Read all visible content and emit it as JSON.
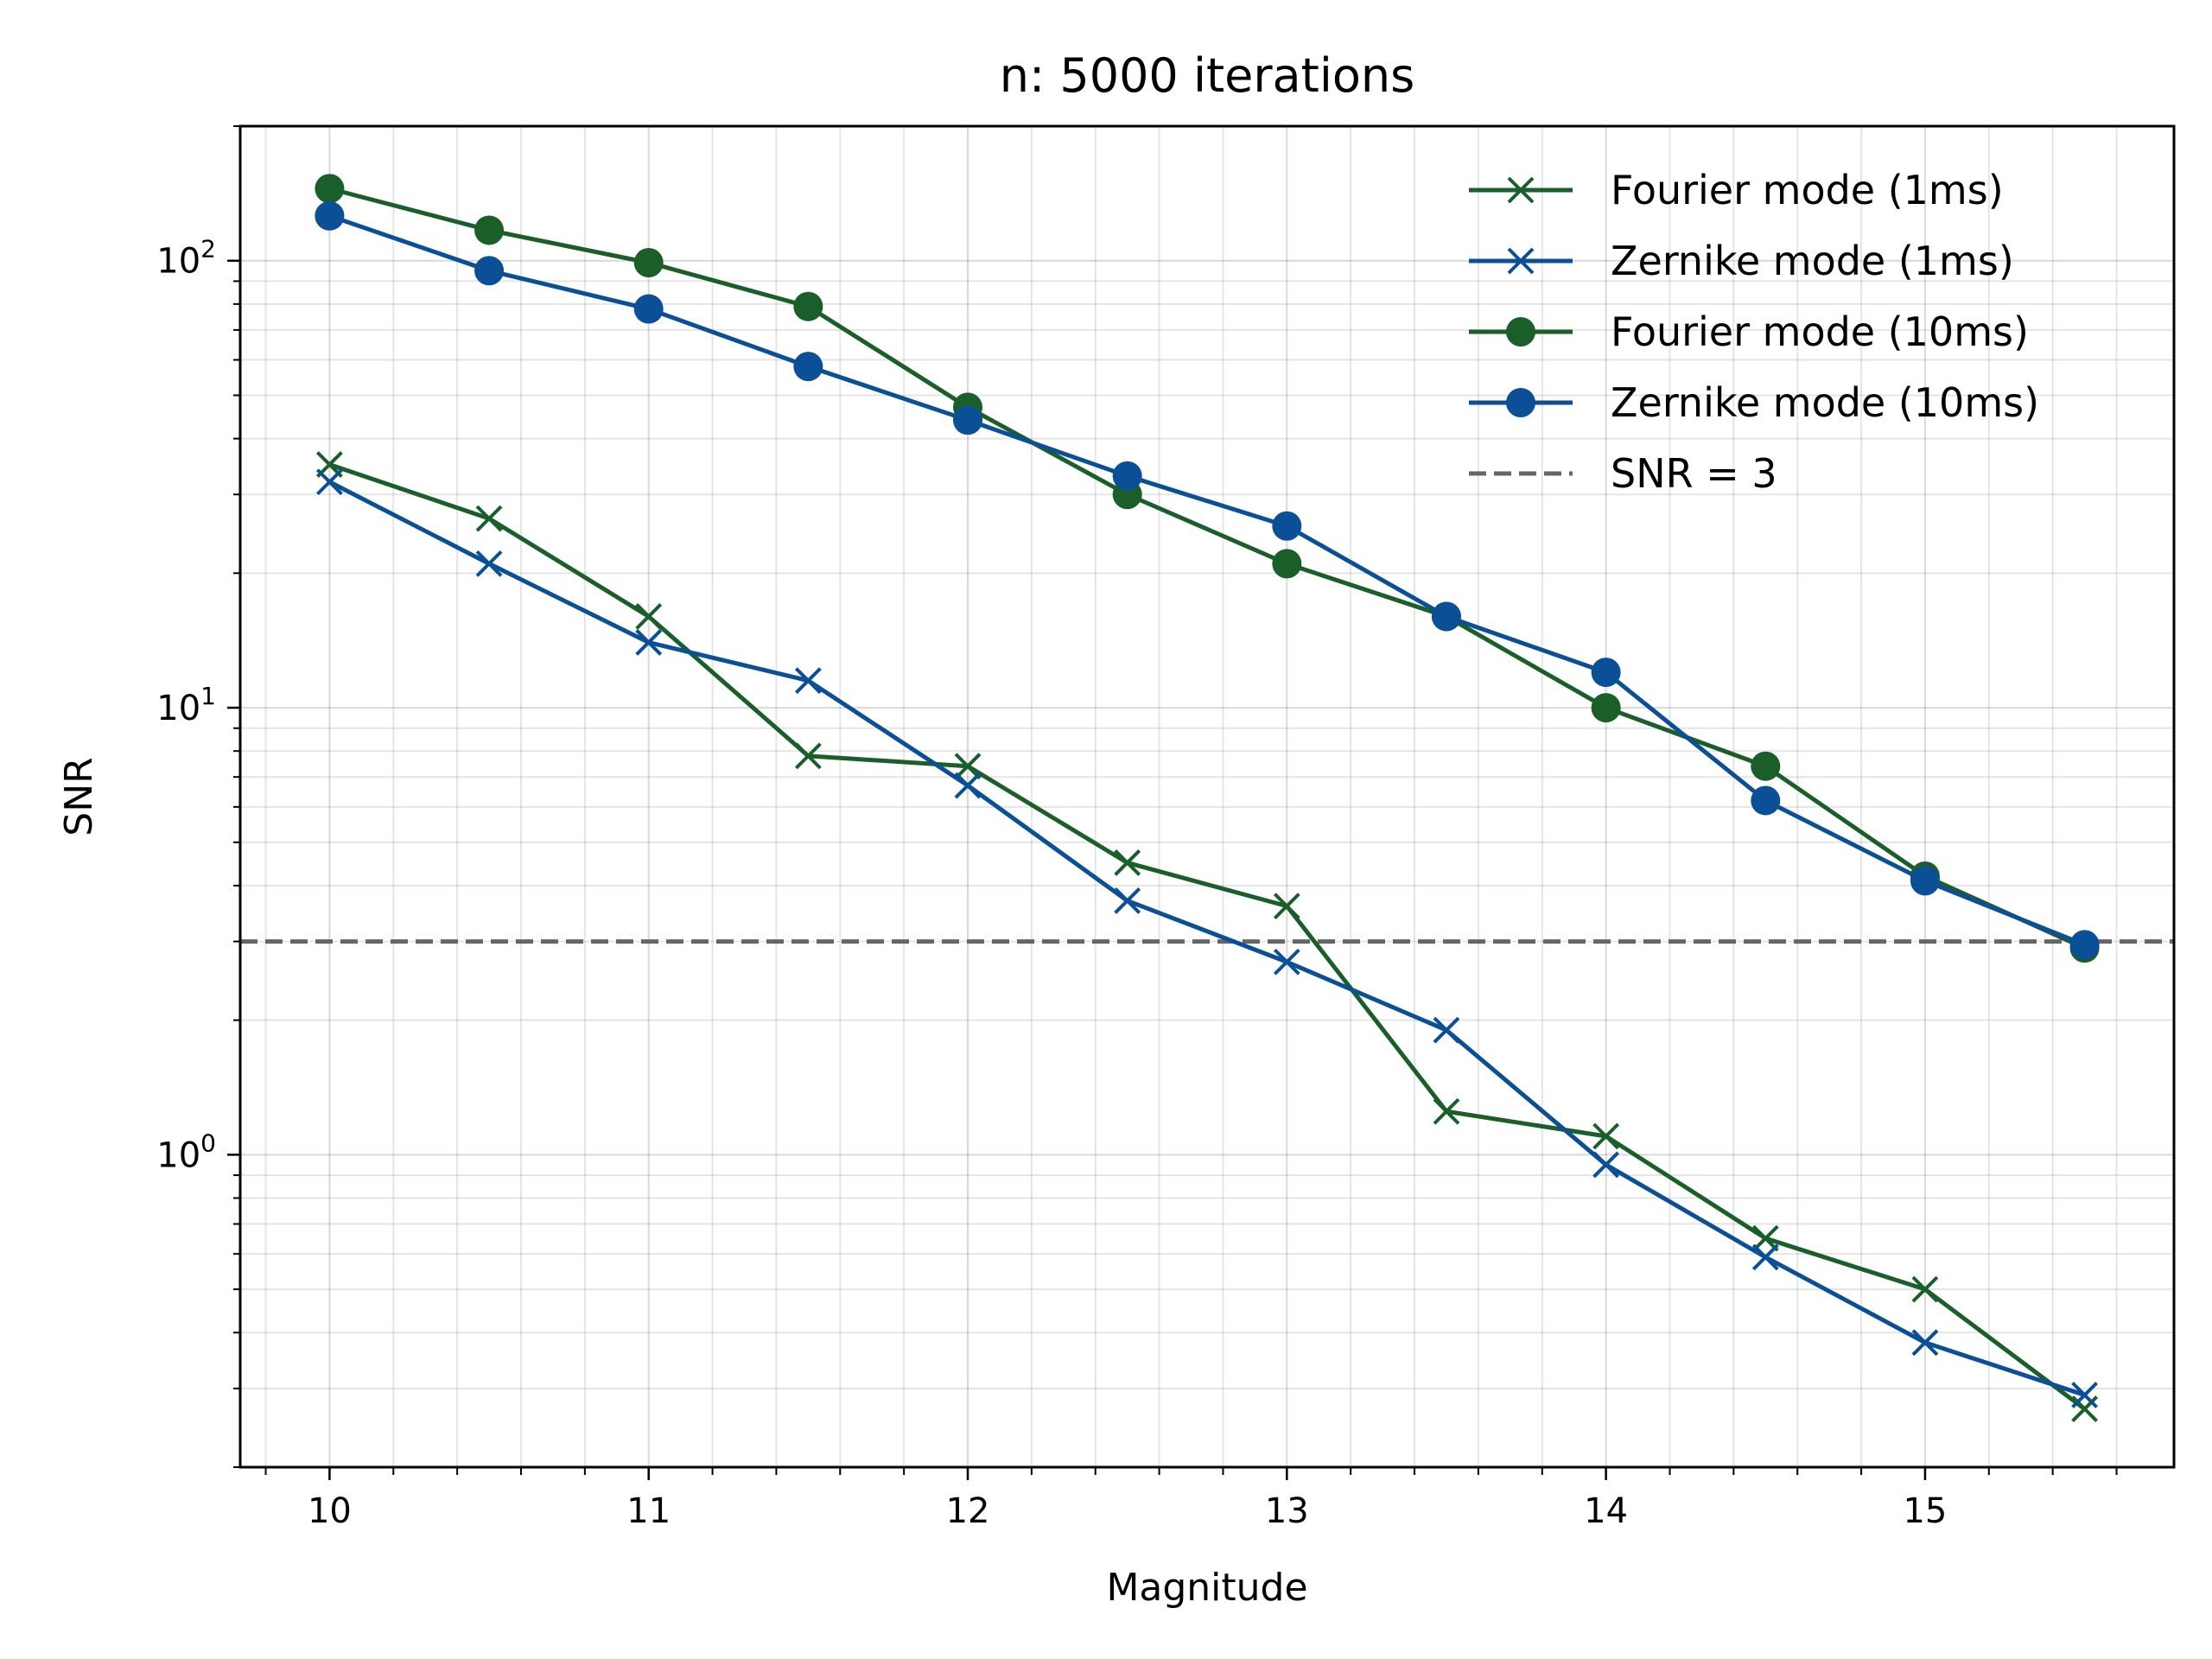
{
  "chart_data": {
    "type": "line",
    "title": "n: 5000 iterations",
    "xlabel": "Magnitude",
    "ylabel": "SNR",
    "x_scale": "linear",
    "y_scale": "log",
    "xlim": [
      9.72,
      15.78
    ],
    "ylim": [
      0.2,
      200
    ],
    "x_ticks": [
      10,
      11,
      12,
      13,
      14,
      15
    ],
    "x_tick_labels": [
      "10",
      "11",
      "12",
      "13",
      "14",
      "15"
    ],
    "y_major_ticks": [
      1,
      10,
      100
    ],
    "y_tick_labels": [
      {
        "base": "10",
        "exp": "0"
      },
      {
        "base": "10",
        "exp": "1"
      },
      {
        "base": "10",
        "exp": "2"
      }
    ],
    "grid": true,
    "legend_position": "top-right",
    "x": [
      10,
      10.5,
      11,
      11.5,
      12,
      12.5,
      13,
      13.5,
      14,
      14.5,
      15,
      15.5
    ],
    "series": [
      {
        "name": "Fourier mode (1ms)",
        "marker": "x",
        "color": "#1a5e2a",
        "values": [
          35,
          26.5,
          16,
          7.8,
          7.4,
          4.5,
          3.6,
          1.25,
          1.1,
          0.65,
          0.5,
          0.27
        ]
      },
      {
        "name": "Zernike mode (1ms)",
        "marker": "x",
        "color": "#0b4f96",
        "values": [
          32,
          21,
          14,
          11.5,
          6.7,
          3.7,
          2.7,
          1.9,
          0.95,
          0.59,
          0.38,
          0.29
        ]
      },
      {
        "name": "Fourier mode (10ms)",
        "marker": "o",
        "color": "#1a5e2a",
        "values": [
          145,
          117,
          99,
          79,
          47,
          30,
          21,
          16,
          10,
          7.4,
          4.2,
          2.9
        ]
      },
      {
        "name": "Zernike mode (10ms)",
        "marker": "o",
        "color": "#0b4f96",
        "values": [
          126,
          95,
          78,
          58,
          44,
          33,
          25.5,
          16,
          12,
          6.2,
          4.1,
          2.95
        ]
      }
    ],
    "reference_line": {
      "name": "SNR = 3",
      "y": 3,
      "style": "dashed",
      "color": "#666666"
    }
  }
}
